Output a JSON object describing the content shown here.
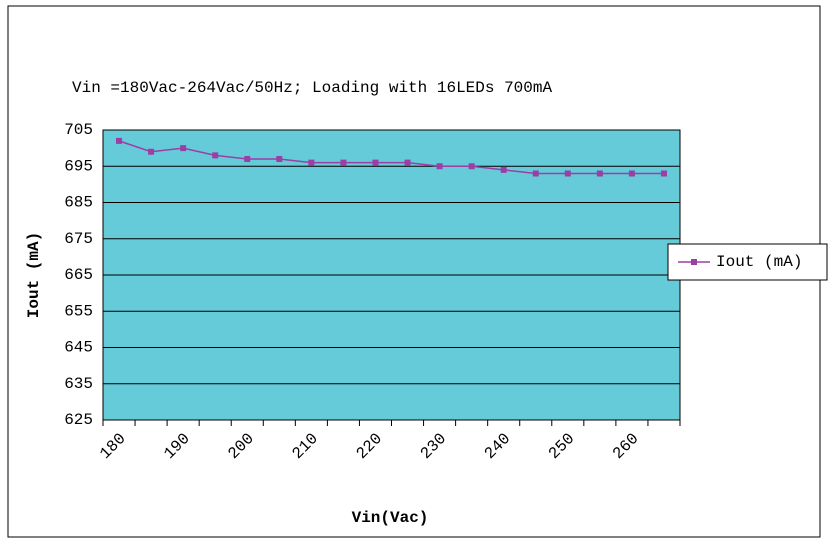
{
  "chart_data": {
    "type": "line",
    "title": "Vin =180Vac-264Vac/50Hz; Loading with 16LEDs 700mA",
    "x_label": "Vin(Vac)",
    "y_label": "Iout (mA)",
    "categories": [
      "180",
      null,
      "190",
      null,
      "200",
      null,
      "210",
      null,
      "220",
      null,
      "230",
      null,
      "240",
      null,
      "250",
      null,
      "260",
      null
    ],
    "series": [
      {
        "name": "Iout (mA)",
        "color": "#9b3fa5",
        "values": [
          702,
          699,
          700,
          698,
          697,
          697,
          696,
          696,
          696,
          696,
          695,
          695,
          694,
          693,
          693,
          693,
          693,
          693
        ]
      }
    ],
    "ylim": [
      625,
      705
    ],
    "yticks": [
      625,
      635,
      645,
      655,
      665,
      675,
      685,
      695,
      705
    ],
    "grid": true,
    "plot_background": "#66cbd9",
    "legend": "right"
  }
}
